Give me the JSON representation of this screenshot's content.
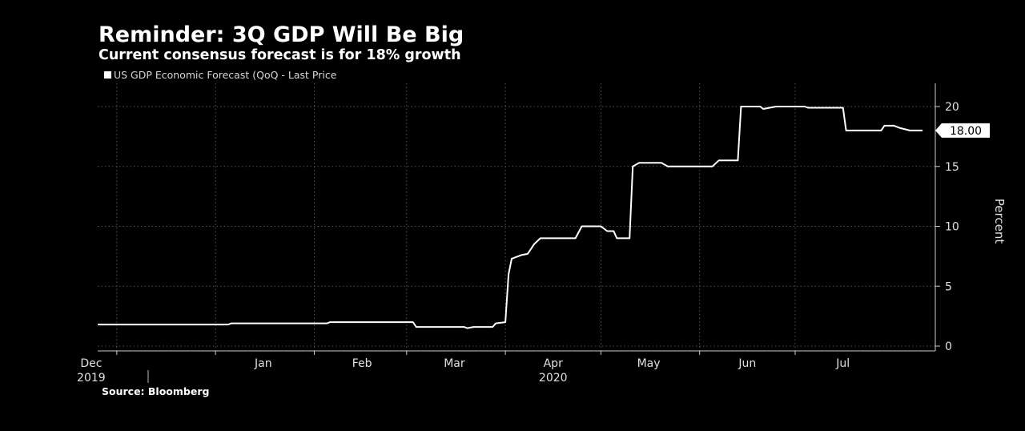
{
  "chart_data": {
    "type": "line",
    "title": "Reminder: 3Q GDP Will Be Big",
    "subtitle": "Current consensus forecast is for 18% growth",
    "legend": [
      "US GDP Economic Forecast (QoQ - Last Price"
    ],
    "ylabel": "Percent",
    "ylim": [
      0,
      22
    ],
    "yticks": [
      0,
      5,
      10,
      15,
      20
    ],
    "xticks": [
      {
        "date": "2019-12-01",
        "label": "Dec"
      },
      {
        "date": "2020-01-01",
        "label": "Jan"
      },
      {
        "date": "2020-02-01",
        "label": "Feb"
      },
      {
        "date": "2020-03-01",
        "label": "Mar"
      },
      {
        "date": "2020-04-01",
        "label": "Apr"
      },
      {
        "date": "2020-05-01",
        "label": "May"
      },
      {
        "date": "2020-06-01",
        "label": "Jun"
      },
      {
        "date": "2020-07-01",
        "label": "Jul"
      }
    ],
    "year_labels": [
      {
        "date": "2019-12-01",
        "label": "2019"
      },
      {
        "date": "2020-04-01",
        "label": "2020"
      }
    ],
    "last_value_label": "18.00",
    "series": [
      {
        "name": "US GDP Economic Forecast (QoQ - Last Price",
        "points": [
          [
            "2019-11-25",
            1.8
          ],
          [
            "2020-01-05",
            1.8
          ],
          [
            "2020-01-06",
            1.9
          ],
          [
            "2020-02-05",
            1.9
          ],
          [
            "2020-02-06",
            2.0
          ],
          [
            "2020-02-14",
            2.0
          ],
          [
            "2020-02-15",
            2.0
          ],
          [
            "2020-03-03",
            2.0
          ],
          [
            "2020-03-04",
            1.6
          ],
          [
            "2020-03-19",
            1.6
          ],
          [
            "2020-03-20",
            1.5
          ],
          [
            "2020-03-22",
            1.6
          ],
          [
            "2020-03-28",
            1.6
          ],
          [
            "2020-03-29",
            1.9
          ],
          [
            "2020-04-01",
            2.0
          ],
          [
            "2020-04-02",
            6.0
          ],
          [
            "2020-04-03",
            7.3
          ],
          [
            "2020-04-06",
            7.6
          ],
          [
            "2020-04-08",
            7.7
          ],
          [
            "2020-04-10",
            8.5
          ],
          [
            "2020-04-12",
            9.0
          ],
          [
            "2020-04-23",
            9.0
          ],
          [
            "2020-04-25",
            10.0
          ],
          [
            "2020-05-01",
            10.0
          ],
          [
            "2020-05-03",
            9.6
          ],
          [
            "2020-05-05",
            9.6
          ],
          [
            "2020-05-06",
            9.0
          ],
          [
            "2020-05-10",
            9.0
          ],
          [
            "2020-05-11",
            15.0
          ],
          [
            "2020-05-13",
            15.3
          ],
          [
            "2020-05-20",
            15.3
          ],
          [
            "2020-05-22",
            15.0
          ],
          [
            "2020-06-05",
            15.0
          ],
          [
            "2020-06-07",
            15.5
          ],
          [
            "2020-06-13",
            15.5
          ],
          [
            "2020-06-14",
            20.0
          ],
          [
            "2020-06-20",
            20.0
          ],
          [
            "2020-06-21",
            19.8
          ],
          [
            "2020-06-25",
            20.0
          ],
          [
            "2020-07-04",
            20.0
          ],
          [
            "2020-07-05",
            19.9
          ],
          [
            "2020-07-16",
            19.9
          ],
          [
            "2020-07-17",
            18.0
          ],
          [
            "2020-07-28",
            18.0
          ],
          [
            "2020-07-29",
            18.4
          ],
          [
            "2020-08-01",
            18.4
          ],
          [
            "2020-08-03",
            18.2
          ],
          [
            "2020-08-06",
            18.0
          ],
          [
            "2020-08-10",
            18.0
          ]
        ]
      }
    ]
  },
  "source": "Source: Bloomberg"
}
